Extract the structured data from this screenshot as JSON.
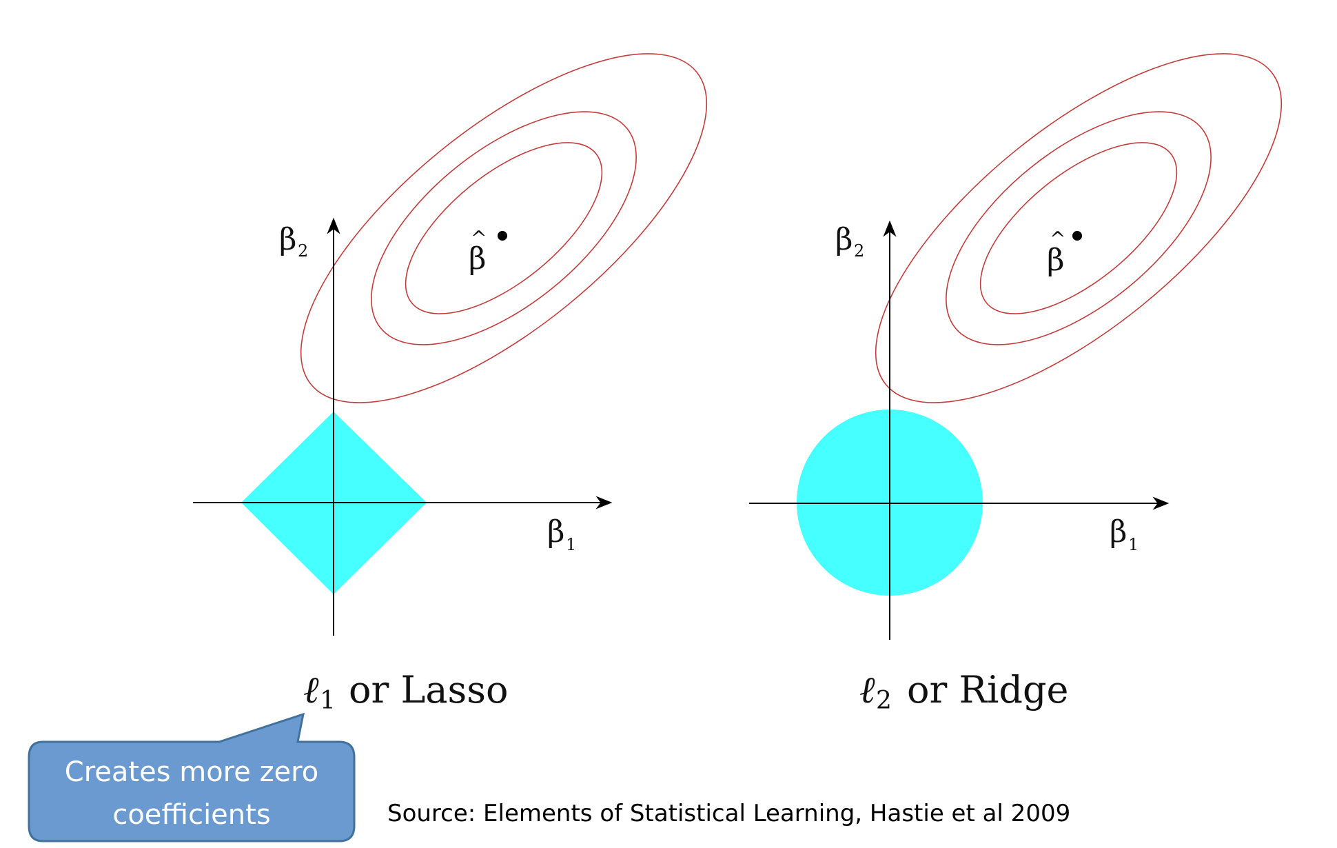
{
  "left_panel": {
    "axis_x_label": "β",
    "axis_x_sub": "1",
    "axis_y_label": "β",
    "axis_y_sub": "2",
    "estimate_label": "β",
    "estimate_hat": "^",
    "caption_ell": "ℓ",
    "caption_sub": "1",
    "caption_text": "or Lasso",
    "constraint_shape": "diamond"
  },
  "right_panel": {
    "axis_x_label": "β",
    "axis_x_sub": "1",
    "axis_y_label": "β",
    "axis_y_sub": "2",
    "estimate_label": "β",
    "estimate_hat": "^",
    "caption_ell": "ℓ",
    "caption_sub": "2",
    "caption_text": "or Ridge",
    "constraint_shape": "circle"
  },
  "callout": {
    "line1": "Creates more zero",
    "line2": "coefficients"
  },
  "source": "Source: Elements of Statistical Learning, Hastie et al 2009",
  "colors": {
    "constraint_fill": "#46FFFF",
    "contour_stroke": "#C23B3B",
    "callout_fill": "#6A9AD0",
    "callout_stroke": "#41719C",
    "axis": "#000000"
  }
}
